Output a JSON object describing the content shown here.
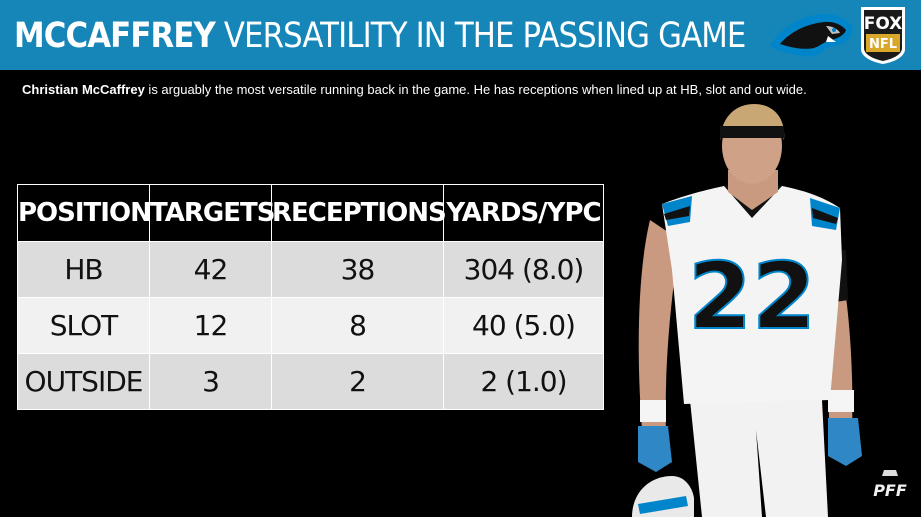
{
  "header": {
    "title_bold": "MCCAFFREY",
    "title_rest": "VERSATILITY IN THE PASSING GAME",
    "brand_top": "FOX",
    "brand_bottom": "NFL"
  },
  "subtitle": {
    "name": "Christian McCaffrey",
    "text": " is arguably the most versatile running back in the game. He has receptions when lined up at HB, slot and out wide."
  },
  "table": {
    "headers": [
      "POSITION",
      "TARGETS",
      "RECEPTIONS",
      "YARDS/YPC"
    ],
    "rows": [
      [
        "HB",
        "42",
        "38",
        "304 (8.0)"
      ],
      [
        "SLOT",
        "12",
        "8",
        "40 (5.0)"
      ],
      [
        "OUTSIDE",
        "3",
        "2",
        "2 (1.0)"
      ]
    ]
  },
  "player": {
    "jersey_number": "22"
  },
  "watermark": "PFF",
  "colors": {
    "header_bg": "#1586b7",
    "panthers_blue": "#0085ca",
    "background": "#000000"
  }
}
